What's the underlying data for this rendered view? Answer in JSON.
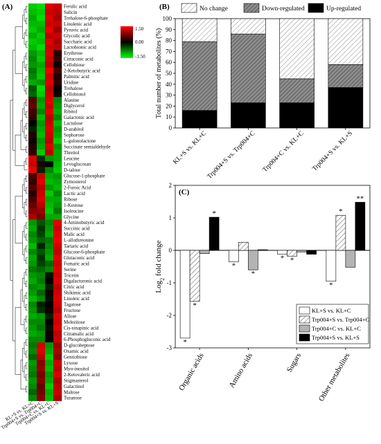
{
  "chart_data": [
    {
      "type": "heatmap",
      "panel_label": "(A)",
      "columns": [
        "KL+S vs. KL+C",
        "Trp004+S vs. Trp004+C",
        "Trp004+C vs. KL+C",
        "Trp004+S vs. KL+S"
      ],
      "colorbar": {
        "ticks": [
          "1.50",
          "0.00",
          "-1.50"
        ],
        "range": [
          -1.5,
          1.5
        ],
        "colors": [
          "#00ff00",
          "#000000",
          "#ff0000"
        ]
      },
      "rows": [
        {
          "name": "Ferulic acid",
          "values": [
            -1.2,
            -1.3,
            1.3,
            1.2
          ]
        },
        {
          "name": "Salicin",
          "values": [
            -1.1,
            -1.2,
            1.2,
            1.1
          ]
        },
        {
          "name": "Trehalose-6-phosphate",
          "values": [
            -1.0,
            -1.3,
            1.3,
            1.0
          ]
        },
        {
          "name": "Linolenic acid",
          "values": [
            -1.1,
            -1.1,
            1.2,
            1.2
          ]
        },
        {
          "name": "Pyruvic acid",
          "values": [
            -1.2,
            -1.0,
            1.4,
            0.9
          ]
        },
        {
          "name": "Glycolic acid",
          "values": [
            -1.0,
            -1.2,
            1.1,
            1.2
          ]
        },
        {
          "name": "Saccharic acid",
          "values": [
            -1.2,
            -1.1,
            1.3,
            1.0
          ]
        },
        {
          "name": "Lactobionic acid",
          "values": [
            -1.1,
            -1.3,
            1.2,
            1.1
          ]
        },
        {
          "name": "Erythrose",
          "values": [
            -0.9,
            -1.1,
            1.3,
            0.2
          ]
        },
        {
          "name": "Citraconic acid",
          "values": [
            -0.8,
            -1.2,
            1.2,
            0.3
          ]
        },
        {
          "name": "Cellobiose",
          "values": [
            -0.9,
            -1.0,
            1.1,
            0.1
          ]
        },
        {
          "name": "2-Ketobutyric acid",
          "values": [
            -0.7,
            -1.1,
            1.4,
            0.4
          ]
        },
        {
          "name": "Palmitic acid",
          "values": [
            -0.8,
            -1.2,
            1.2,
            0.2
          ]
        },
        {
          "name": "Uridine",
          "values": [
            -1.0,
            -0.9,
            1.3,
            0.3
          ]
        },
        {
          "name": "Trehalose",
          "values": [
            -0.5,
            -1.3,
            1.1,
            0.0
          ]
        },
        {
          "name": "Cellobiotol",
          "values": [
            -0.6,
            -1.2,
            1.2,
            0.1
          ]
        },
        {
          "name": "Alanine",
          "values": [
            0.5,
            -0.9,
            1.3,
            -0.8
          ]
        },
        {
          "name": "Diglycerol",
          "values": [
            0.6,
            -1.0,
            1.2,
            -0.9
          ]
        },
        {
          "name": "Ribitol",
          "values": [
            0.4,
            -0.8,
            1.3,
            -1.0
          ]
        },
        {
          "name": "Galactonic acid",
          "values": [
            0.3,
            -1.1,
            1.1,
            -0.8
          ]
        },
        {
          "name": "Lactulose",
          "values": [
            0.0,
            -0.9,
            1.2,
            -1.1
          ]
        },
        {
          "name": "D-arabitol",
          "values": [
            -0.2,
            -1.0,
            1.3,
            -0.9
          ]
        },
        {
          "name": "Sophorose",
          "values": [
            0.2,
            -1.1,
            1.2,
            -1.0
          ]
        },
        {
          "name": "L-gulonolactone",
          "values": [
            0.1,
            -0.9,
            1.1,
            -1.2
          ]
        },
        {
          "name": "Succinate semialdehyde",
          "values": [
            0.2,
            -1.0,
            1.3,
            -0.9
          ]
        },
        {
          "name": "Threitol",
          "values": [
            0.3,
            -1.2,
            1.1,
            -1.0
          ]
        },
        {
          "name": "Leucine",
          "values": [
            1.3,
            -0.3,
            -0.9,
            -1.0
          ]
        },
        {
          "name": "Levoglucosan",
          "values": [
            1.2,
            0.2,
            0.0,
            -1.1
          ]
        },
        {
          "name": "D-talose",
          "values": [
            1.4,
            -0.2,
            -0.8,
            -1.2
          ]
        },
        {
          "name": "Glucose-1-phosphate",
          "values": [
            0.4,
            1.2,
            -1.0,
            -0.9
          ]
        },
        {
          "name": "Zymosterol",
          "values": [
            0.3,
            1.3,
            -1.1,
            -1.0
          ]
        },
        {
          "name": "2-Furoic Acid",
          "values": [
            0.5,
            1.1,
            -0.9,
            -1.1
          ]
        },
        {
          "name": "Lactic acid",
          "values": [
            0.2,
            1.2,
            -1.2,
            -0.8
          ]
        },
        {
          "name": "Ribose",
          "values": [
            0.4,
            1.3,
            -1.0,
            -1.0
          ]
        },
        {
          "name": "1-Kestose",
          "values": [
            0.6,
            1.1,
            -1.1,
            -0.9
          ]
        },
        {
          "name": "Isoleucine",
          "values": [
            0.8,
            0.9,
            -1.2,
            -0.7
          ]
        },
        {
          "name": "Glycine",
          "values": [
            1.0,
            0.7,
            -1.0,
            -1.0
          ]
        },
        {
          "name": "4-Aminobutyric acid",
          "values": [
            -0.9,
            -0.5,
            -0.8,
            1.3
          ]
        },
        {
          "name": "Succinic acid",
          "values": [
            -1.0,
            -0.3,
            -0.9,
            1.2
          ]
        },
        {
          "name": "Malic acid",
          "values": [
            -0.8,
            -0.4,
            -1.0,
            1.3
          ]
        },
        {
          "name": "L-allothreonine",
          "values": [
            -0.9,
            -0.6,
            -0.7,
            1.4
          ]
        },
        {
          "name": "Tartaric acid",
          "values": [
            -1.1,
            -0.2,
            -0.8,
            1.2
          ]
        },
        {
          "name": "Glucose-6-phosphate",
          "values": [
            -0.8,
            -0.5,
            -0.9,
            1.1
          ]
        },
        {
          "name": "Glutaconic acid",
          "values": [
            -1.0,
            -0.3,
            -1.0,
            1.3
          ]
        },
        {
          "name": "Fumaric acid",
          "values": [
            -0.9,
            -0.4,
            -0.6,
            1.2
          ]
        },
        {
          "name": "Serine",
          "values": [
            -0.7,
            -0.6,
            -0.8,
            1.3
          ]
        },
        {
          "name": "Tricetin",
          "values": [
            -0.9,
            -0.8,
            -0.1,
            1.2
          ]
        },
        {
          "name": "Digalacturonic acid",
          "values": [
            -1.0,
            -0.7,
            0.0,
            1.3
          ]
        },
        {
          "name": "Citric acid",
          "values": [
            -0.8,
            -0.9,
            -0.2,
            1.1
          ]
        },
        {
          "name": "Shikimic acid",
          "values": [
            -0.9,
            -0.6,
            0.1,
            1.2
          ]
        },
        {
          "name": "Linoleic acid",
          "values": [
            -1.1,
            -0.8,
            -0.1,
            1.3
          ]
        },
        {
          "name": "Tagatose",
          "values": [
            -0.8,
            -0.2,
            0.0,
            1.2
          ]
        },
        {
          "name": "Fructose",
          "values": [
            -0.9,
            -0.3,
            0.1,
            1.1
          ]
        },
        {
          "name": "Allose",
          "values": [
            -1.0,
            -0.9,
            -0.2,
            1.3
          ]
        },
        {
          "name": "Melezitose",
          "values": [
            -0.8,
            -0.8,
            0.0,
            1.2
          ]
        },
        {
          "name": "Cis-sinapinic acid",
          "values": [
            -0.9,
            -0.7,
            -0.1,
            1.3
          ]
        },
        {
          "name": "Citramalic acid",
          "values": [
            -1.0,
            -0.9,
            0.1,
            1.1
          ]
        },
        {
          "name": "6-Phosphogluconic acid",
          "values": [
            -0.8,
            -0.8,
            0.0,
            1.2
          ]
        },
        {
          "name": "D-glucoheptose",
          "values": [
            -0.7,
            1.2,
            -0.9,
            0.9
          ]
        },
        {
          "name": "Oxamic acid",
          "values": [
            -0.8,
            1.3,
            -1.0,
            1.0
          ]
        },
        {
          "name": "Gentiobiose",
          "values": [
            -0.6,
            1.1,
            -1.2,
            0.8
          ]
        },
        {
          "name": "Lyxose",
          "values": [
            -0.9,
            0.8,
            -1.0,
            1.2
          ]
        },
        {
          "name": "Myo-inositol",
          "values": [
            -0.8,
            0.9,
            -1.1,
            1.1
          ]
        },
        {
          "name": "2-Ketovaleric acid",
          "values": [
            -0.7,
            0.7,
            -0.9,
            1.3
          ]
        },
        {
          "name": "Stigmasterol",
          "values": [
            -0.9,
            0.8,
            -1.0,
            1.0
          ]
        },
        {
          "name": "Galactinol",
          "values": [
            -0.8,
            0.6,
            -1.2,
            1.1
          ]
        },
        {
          "name": "Maltose",
          "values": [
            -0.6,
            0.7,
            -1.0,
            1.2
          ]
        },
        {
          "name": "Turanose",
          "values": [
            -0.8,
            0.8,
            -1.1,
            1.0
          ]
        }
      ]
    },
    {
      "type": "bar",
      "stacked": true,
      "panel_label": "(B)",
      "ylabel": "Total number of metabolites (%)",
      "ylim": [
        0,
        100
      ],
      "yticks": [
        0,
        10,
        20,
        30,
        40,
        50,
        60,
        70,
        80,
        90,
        100
      ],
      "categories": [
        "KL+S vs. KL+C",
        "Trp004+S vs. Trp004+C",
        "Trp004+C vs. KL+C",
        "Trp004+S vs. KL+S"
      ],
      "series": [
        {
          "name": "Up-regulated",
          "values": [
            16,
            23,
            23,
            37
          ],
          "pattern": "solid-black"
        },
        {
          "name": "Down-regulated",
          "values": [
            63,
            63,
            22,
            21
          ],
          "pattern": "dark-hatch"
        },
        {
          "name": "No change",
          "values": [
            21,
            14,
            55,
            42
          ],
          "pattern": "light-hatch"
        }
      ],
      "legend_order": [
        "No change",
        "Down-regulated",
        "Up-regulated"
      ],
      "legend": "top"
    },
    {
      "type": "bar",
      "panel_label": "(C)",
      "ylabel": "Log2 fold change",
      "ylim": [
        -3,
        2
      ],
      "yticks": [
        -3,
        -2,
        -1,
        0,
        1,
        2
      ],
      "categories": [
        "Organic acids",
        "Amino acids",
        "Sugars",
        "Other metabolites"
      ],
      "series": [
        {
          "name": "KL+S vs. KL+C",
          "values": [
            -2.7,
            -0.35,
            -0.12,
            -0.95
          ],
          "marks": [
            "*",
            "*",
            "*",
            "*"
          ],
          "pattern": "white"
        },
        {
          "name": "Trp004+S vs. Trp004+C",
          "values": [
            -1.57,
            0.25,
            -0.18,
            1.08
          ],
          "marks": [
            "*",
            "",
            "*",
            "*"
          ],
          "pattern": "hatch"
        },
        {
          "name": "Trp004+C vs. KL+C",
          "values": [
            -0.1,
            -0.6,
            -0.05,
            -0.52
          ],
          "marks": [
            "",
            "*",
            "",
            ""
          ],
          "pattern": "gray"
        },
        {
          "name": "Trp004+S vs. KL+S",
          "values": [
            1.02,
            0.02,
            -0.12,
            1.48
          ],
          "marks": [
            "*",
            "",
            "",
            "**"
          ],
          "pattern": "black"
        }
      ],
      "legend": "bottom-right"
    }
  ]
}
